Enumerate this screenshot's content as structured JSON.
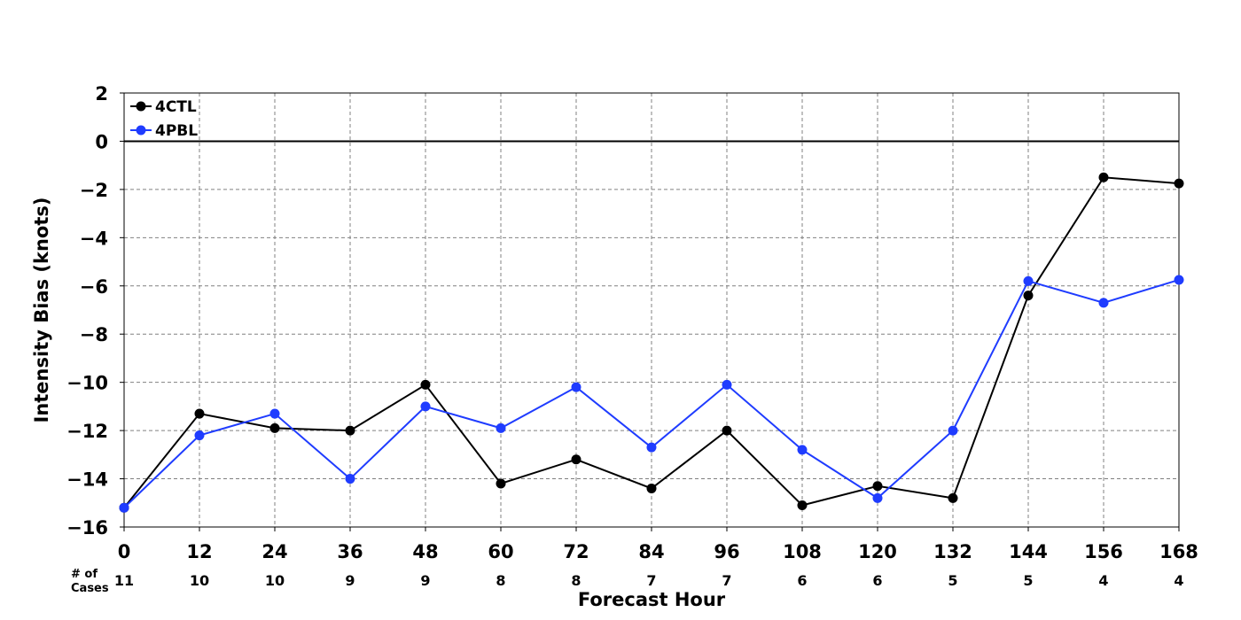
{
  "chart_data": {
    "type": "line",
    "title": "",
    "xlabel": "Forecast Hour",
    "ylabel": "Intensity Bias (knots)",
    "xlim": [
      0,
      168
    ],
    "ylim": [
      -16,
      2
    ],
    "x": [
      0,
      12,
      24,
      36,
      48,
      60,
      72,
      84,
      96,
      108,
      120,
      132,
      144,
      156,
      168
    ],
    "x_ticks": [
      "0",
      "12",
      "24",
      "36",
      "48",
      "60",
      "72",
      "84",
      "96",
      "108",
      "120",
      "132",
      "144",
      "156",
      "168"
    ],
    "y_ticks": [
      2,
      0,
      -2,
      -4,
      -6,
      -8,
      -10,
      -12,
      -14,
      -16
    ],
    "y_tick_labels": [
      "2",
      "0",
      "−2",
      "−4",
      "−6",
      "−8",
      "−10",
      "−12",
      "−14",
      "−16"
    ],
    "grid": true,
    "zero_line": true,
    "legend_position": "top-left",
    "cases_title_line1": "# of",
    "cases_title_line2": "Cases",
    "cases": [
      "11",
      "10",
      "10",
      "9",
      "9",
      "8",
      "8",
      "7",
      "7",
      "6",
      "6",
      "5",
      "5",
      "4",
      "4"
    ],
    "series": [
      {
        "name": "4CTL",
        "color": "#000000",
        "values": [
          -15.2,
          -11.3,
          -11.9,
          -12.0,
          -10.1,
          -14.2,
          -13.2,
          -14.4,
          -12.0,
          -15.1,
          -14.3,
          -14.8,
          -6.4,
          -1.5,
          -1.75
        ]
      },
      {
        "name": "4PBL",
        "color": "#1f3cff",
        "values": [
          -15.2,
          -12.2,
          -11.3,
          -14.0,
          -11.0,
          -11.9,
          -10.2,
          -12.7,
          -10.1,
          -12.8,
          -14.8,
          -12.0,
          -5.8,
          -6.7,
          -5.75
        ]
      }
    ]
  }
}
